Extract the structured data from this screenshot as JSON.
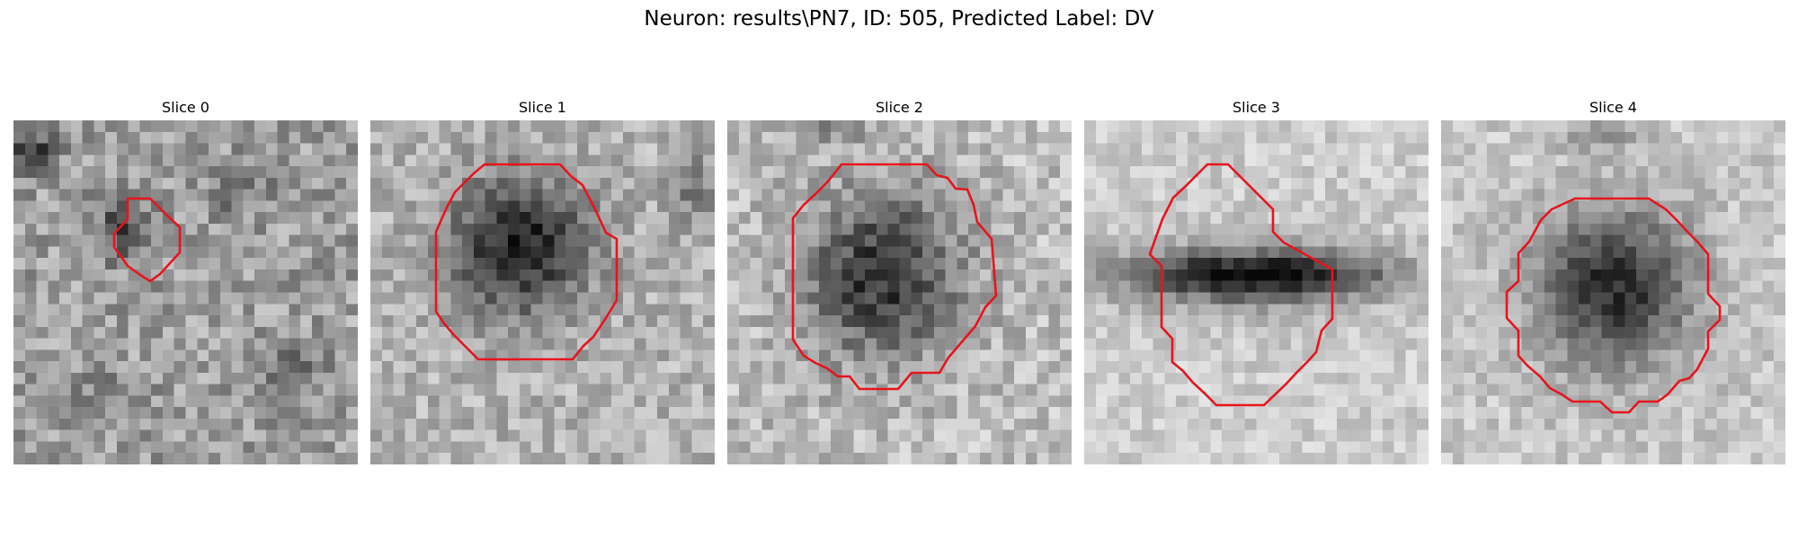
{
  "figure": {
    "title": "Neuron: results\\PN7, ID: 505, Predicted Label: DV"
  },
  "slices": [
    {
      "title": "Slice 0",
      "contour_color": "#e8141c"
    },
    {
      "title": "Slice 1",
      "contour_color": "#e8141c"
    },
    {
      "title": "Slice 2",
      "contour_color": "#e8141c"
    },
    {
      "title": "Slice 3",
      "contour_color": "#e8141c"
    },
    {
      "title": "Slice 4",
      "contour_color": "#e8141c"
    }
  ],
  "colormap": "gray"
}
